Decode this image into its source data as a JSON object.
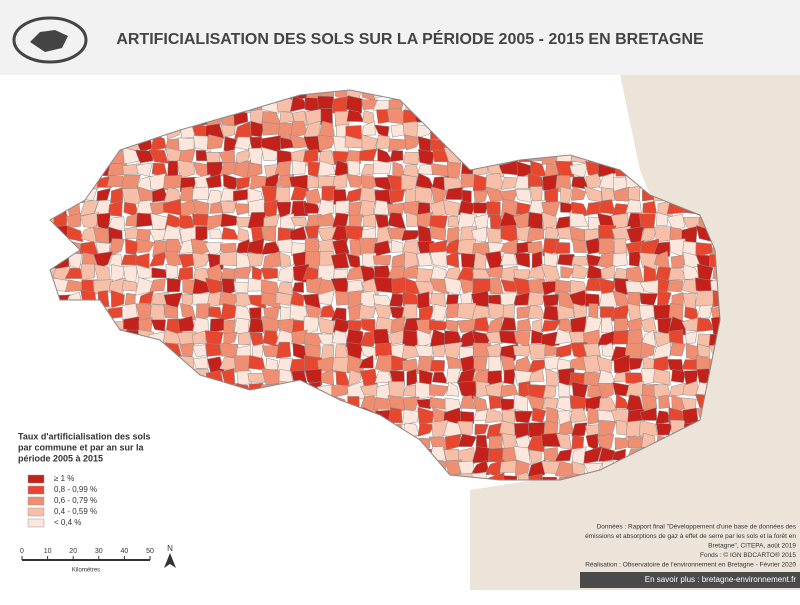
{
  "header": {
    "title": "ARTIFICIALISATION DES SOLS SUR LA PÉRIODE 2005 - 2015 EN BRETAGNE"
  },
  "legend": {
    "title": [
      "Taux d'artificialisation des sols",
      "par commune et par an sur la",
      "période 2005 à 2015"
    ],
    "items": [
      {
        "label": "≥ 1 %",
        "color": "#c3211a"
      },
      {
        "label": "0,8 - 0,99 %",
        "color": "#e8472f"
      },
      {
        "label": "0,6 - 0,79 %",
        "color": "#f08e72"
      },
      {
        "label": "0,4 - 0,59 %",
        "color": "#f7bfa8"
      },
      {
        "label": "< 0,4 %",
        "color": "#fde6dc"
      }
    ]
  },
  "scale": {
    "ticks": [
      0,
      10,
      20,
      30,
      40,
      50
    ],
    "unit": "Kilomètres",
    "north": "N"
  },
  "sources": [
    "Données : Rapport final \"Développement d'une base de données des",
    "émissions et absorptions de gaz à effet de serre par les sols et la forêt en",
    "Bretagne\", CITEPA, août 2019",
    "Fonds : © IGN BDCARTO® 2015",
    "Réalisation : Observatoire de l'environnement en Bretagne - Février 2020"
  ],
  "footer": "En savoir plus : bretagne-environnement.fr"
}
